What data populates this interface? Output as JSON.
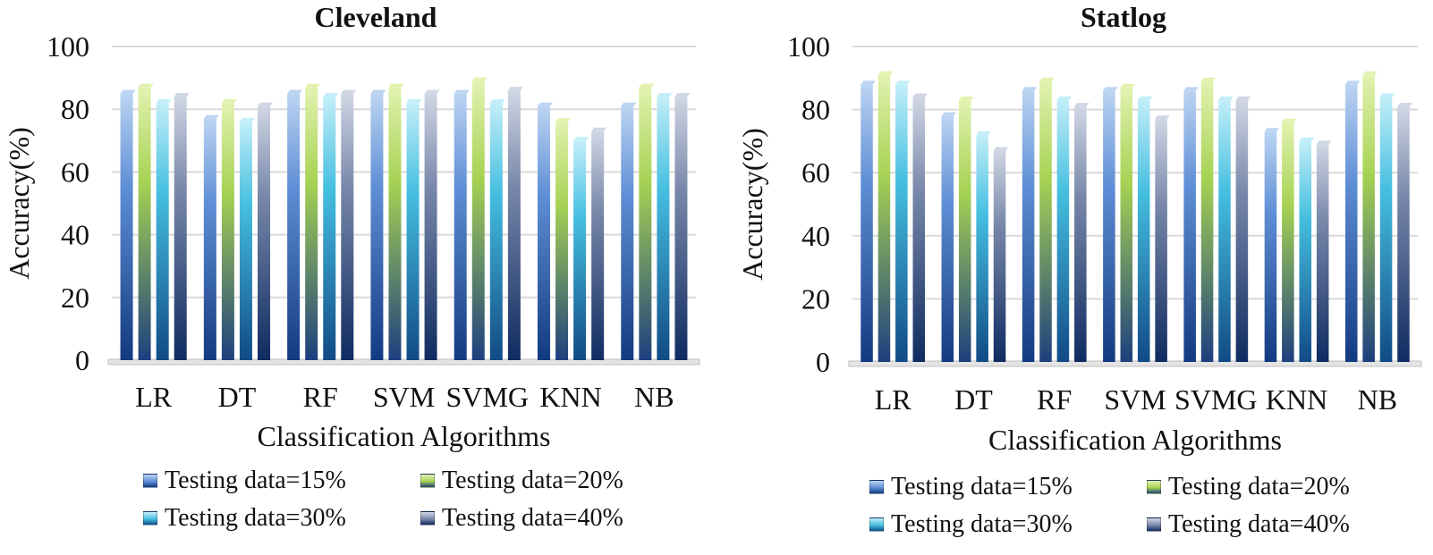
{
  "colors": {
    "series": [
      [
        "#bcd4f2",
        "#5f8fd6",
        "#123a80"
      ],
      [
        "#e2f2b0",
        "#a6d253",
        "#1d3f7e"
      ],
      [
        "#c2eef8",
        "#45bfe0",
        "#114a86"
      ],
      [
        "#d0d6e4",
        "#7988aa",
        "#0f2b60"
      ]
    ],
    "grid": "#d9d9d9",
    "baseline": "#bfbfbf"
  },
  "legend_icon": "bar-swatch",
  "chart_data": [
    {
      "type": "bar",
      "title": "Cleveland",
      "xlabel": "Classification Algorithms",
      "ylabel": "Accuracy(%)",
      "ylim": [
        0,
        100
      ],
      "yticks": [
        "0",
        "20",
        "40",
        "60",
        "80",
        "100"
      ],
      "grid": true,
      "legend_position": "bottom",
      "categories": [
        "LR",
        "DT",
        "RF",
        "SVM",
        "SVMG",
        "KNN",
        "NB"
      ],
      "series": [
        {
          "name": "Testing data=15%",
          "values": [
            85,
            77,
            85,
            85,
            85,
            81,
            81
          ]
        },
        {
          "name": "Testing data=20%",
          "values": [
            87,
            82,
            87,
            87,
            89,
            76,
            87
          ]
        },
        {
          "name": "Testing data=30%",
          "values": [
            82,
            76,
            84,
            82,
            82,
            70,
            84
          ]
        },
        {
          "name": "Testing data=40%",
          "values": [
            84,
            81,
            85,
            85,
            86,
            73,
            84
          ]
        }
      ]
    },
    {
      "type": "bar",
      "title": "Statlog",
      "xlabel": "Classification Algorithms",
      "ylabel": "Accuracy(%)",
      "ylim": [
        0,
        100
      ],
      "yticks": [
        "0",
        "20",
        "40",
        "60",
        "80",
        "100"
      ],
      "grid": true,
      "legend_position": "bottom",
      "categories": [
        "LR",
        "DT",
        "RF",
        "SVM",
        "SVMG",
        "KNN",
        "NB"
      ],
      "series": [
        {
          "name": "Testing data=15%",
          "values": [
            88,
            78,
            86,
            86,
            86,
            73,
            88
          ]
        },
        {
          "name": "Testing data=20%",
          "values": [
            91,
            83,
            89,
            87,
            89,
            76,
            91
          ]
        },
        {
          "name": "Testing data=30%",
          "values": [
            88,
            72,
            83,
            83,
            83,
            70,
            84
          ]
        },
        {
          "name": "Testing data=40%",
          "values": [
            84,
            67,
            81,
            77,
            83,
            69,
            81
          ]
        }
      ]
    }
  ]
}
